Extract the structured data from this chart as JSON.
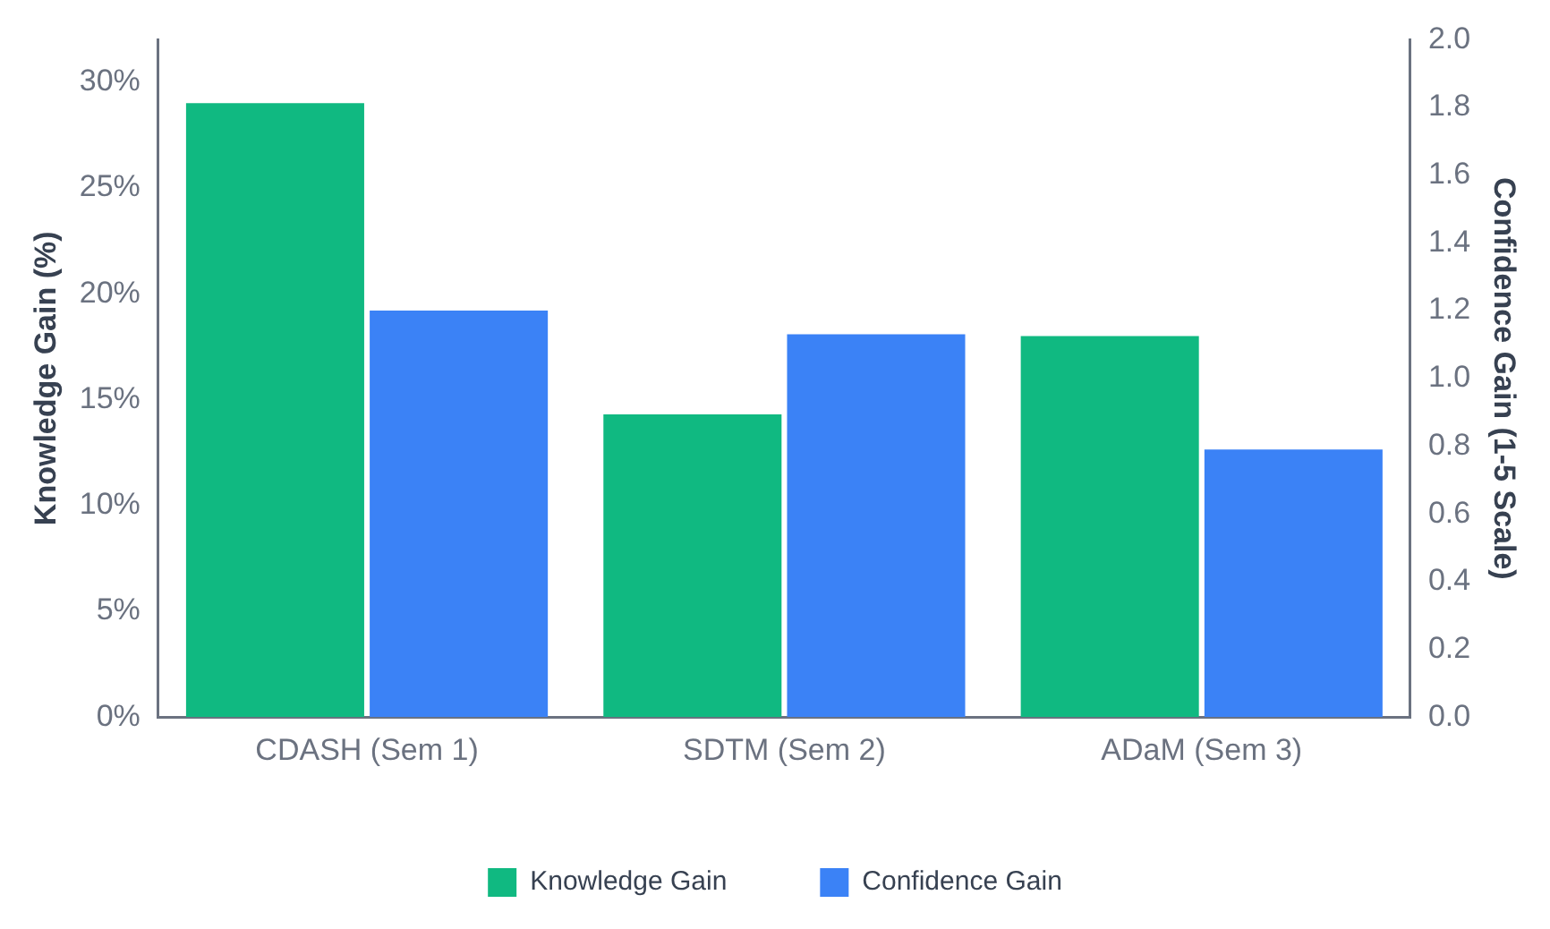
{
  "chart_data": {
    "type": "bar",
    "xlabel": null,
    "ylabel": "Knowledge Gain (%)",
    "y2label": "Confidence Gain (1-5 Scale)",
    "categories": [
      "CDASH (Sem 1)",
      "SDTM (Sem 2)",
      "ADaM (Sem 3)"
    ],
    "series": [
      {
        "name": "Knowledge Gain",
        "color": "#10b981",
        "values": [
          29.0,
          14.3,
          18.0
        ]
      },
      {
        "name": "Confidence Gain",
        "color": "#3b82f6",
        "values": [
          1.2,
          1.13,
          0.79
        ],
        "axis": "y2"
      }
    ],
    "ylim": [
      0,
      32
    ],
    "yticks": [
      {
        "value": 0,
        "label": "0%"
      },
      {
        "value": 5,
        "label": "5%"
      },
      {
        "value": 10,
        "label": "10%"
      },
      {
        "value": 15,
        "label": "15%"
      },
      {
        "value": 20,
        "label": "20%"
      },
      {
        "value": 25,
        "label": "25%"
      },
      {
        "value": 30,
        "label": "30%"
      }
    ],
    "y2lim": [
      0,
      2
    ],
    "y2ticks": [
      {
        "value": 0,
        "label": "0.0"
      },
      {
        "value": 0.2,
        "label": "0.2"
      },
      {
        "value": 0.4,
        "label": "0.4"
      },
      {
        "value": 0.6,
        "label": "0.6"
      },
      {
        "value": 0.8,
        "label": "0.8"
      },
      {
        "value": 1,
        "label": "1.0"
      },
      {
        "value": 1.2,
        "label": "1.2"
      },
      {
        "value": 1.4,
        "label": "1.4"
      },
      {
        "value": 1.6,
        "label": "1.6"
      },
      {
        "value": 1.8,
        "label": "1.8"
      },
      {
        "value": 2,
        "label": "2.0"
      }
    ],
    "grid": false,
    "legend": "bottom"
  }
}
